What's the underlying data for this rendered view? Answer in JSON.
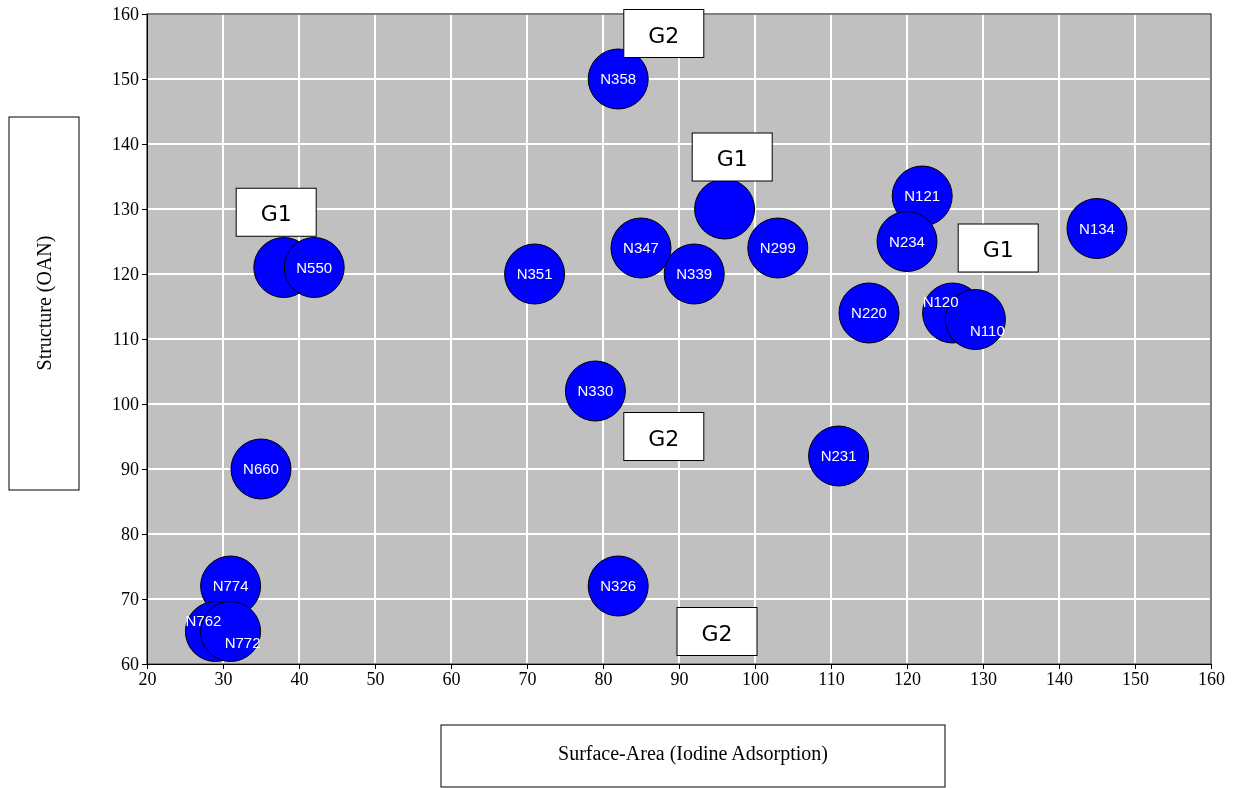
{
  "chart_data": {
    "type": "scatter",
    "xlabel": "Surface-Area (Iodine Adsorption)",
    "ylabel": "Structure (OAN)",
    "xlim": [
      20,
      160
    ],
    "xticks": [
      20,
      30,
      40,
      50,
      60,
      70,
      80,
      90,
      100,
      110,
      120,
      130,
      140,
      150,
      160
    ],
    "ylim": [
      60,
      160
    ],
    "yticks": [
      60,
      70,
      80,
      90,
      100,
      110,
      120,
      130,
      140,
      150,
      160
    ],
    "grid": true,
    "marker": "circle",
    "series": [
      {
        "color": "#0000ff",
        "x": [
          82,
          122,
          145,
          96,
          85,
          103,
          120,
          92,
          71,
          38,
          42,
          115,
          126,
          129,
          79,
          111,
          35,
          31,
          82,
          29,
          31
        ],
        "values": [
          150,
          132,
          127,
          130,
          124,
          124,
          125,
          120,
          120,
          121,
          121,
          114,
          114,
          113,
          102,
          92,
          90,
          72,
          72,
          65,
          65
        ]
      }
    ],
    "annotations": [
      {
        "text": "N358",
        "x": 82,
        "y": 150
      },
      {
        "text": "N121",
        "x": 122,
        "y": 132
      },
      {
        "text": "N134",
        "x": 145,
        "y": 127
      },
      {
        "text": "N347",
        "x": 85,
        "y": 124
      },
      {
        "text": "N299",
        "x": 103,
        "y": 124
      },
      {
        "text": "N234",
        "x": 120,
        "y": 125
      },
      {
        "text": "N339",
        "x": 92,
        "y": 120
      },
      {
        "text": "N351",
        "x": 71,
        "y": 120
      },
      {
        "text": "N550",
        "x": 42,
        "y": 121
      },
      {
        "text": "N220",
        "x": 115,
        "y": 114
      },
      {
        "text": "N120",
        "x": 126,
        "y": 114
      },
      {
        "text": "N110",
        "x": 129,
        "y": 113
      },
      {
        "text": "N330",
        "x": 79,
        "y": 102
      },
      {
        "text": "N231",
        "x": 111,
        "y": 92
      },
      {
        "text": "N660",
        "x": 35,
        "y": 90
      },
      {
        "text": "N774",
        "x": 31,
        "y": 72
      },
      {
        "text": "N326",
        "x": 82,
        "y": 72
      },
      {
        "text": "N762",
        "x": 29,
        "y": 65
      },
      {
        "text": "N772",
        "x": 31,
        "y": 65
      },
      "G2",
      "G1",
      "G1",
      "G1",
      "G2",
      "G2"
    ]
  }
}
